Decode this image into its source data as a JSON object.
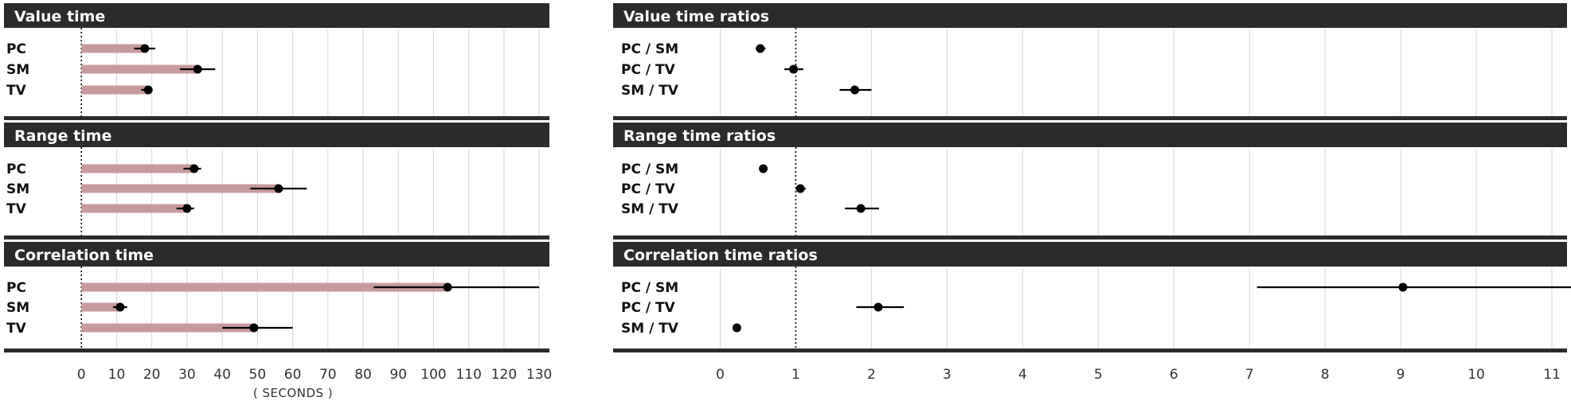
{
  "chart_data": [
    {
      "type": "bar",
      "title": "Value  time",
      "categories": [
        "PC",
        "SM",
        "TV"
      ],
      "values": [
        18,
        33,
        19
      ],
      "ci": [
        [
          15,
          21
        ],
        [
          28,
          38
        ],
        [
          17,
          20
        ]
      ],
      "xlim": [
        -10,
        132
      ],
      "xticks": [
        0,
        10,
        20,
        30,
        40,
        50,
        60,
        70,
        80,
        90,
        100,
        110,
        120,
        130
      ],
      "xlabel": "( SECONDS )",
      "reference_line": 0
    },
    {
      "type": "bar",
      "title": "Range time",
      "categories": [
        "PC",
        "SM",
        "TV"
      ],
      "values": [
        32,
        56,
        30
      ],
      "ci": [
        [
          29,
          34
        ],
        [
          48,
          64
        ],
        [
          27,
          32
        ]
      ],
      "xlim": [
        -10,
        132
      ],
      "xticks": [
        0,
        10,
        20,
        30,
        40,
        50,
        60,
        70,
        80,
        90,
        100,
        110,
        120,
        130
      ],
      "xlabel": "( SECONDS )",
      "reference_line": 0
    },
    {
      "type": "bar",
      "title": "Correlation time",
      "categories": [
        "PC",
        "SM",
        "TV"
      ],
      "values": [
        104,
        11,
        49
      ],
      "ci": [
        [
          83,
          130
        ],
        [
          9,
          13
        ],
        [
          40,
          60
        ]
      ],
      "xlim": [
        -10,
        132
      ],
      "xticks": [
        0,
        10,
        20,
        30,
        40,
        50,
        60,
        70,
        80,
        90,
        100,
        110,
        120,
        130
      ],
      "xlabel": "( SECONDS )",
      "reference_line": 0
    },
    {
      "type": "scatter",
      "title": "Value time ratios",
      "categories": [
        "PC / SM",
        "PC / TV",
        "SM / TV"
      ],
      "values": [
        0.53,
        0.97,
        1.78
      ],
      "ci": [
        [
          0.47,
          0.6
        ],
        [
          0.85,
          1.1
        ],
        [
          1.58,
          2.0
        ]
      ],
      "xlim": [
        -0.5,
        11.2
      ],
      "xticks": [
        0,
        1,
        2,
        3,
        4,
        5,
        6,
        7,
        8,
        9,
        10,
        11
      ],
      "reference_line": 1
    },
    {
      "type": "scatter",
      "title": "Range time  ratios",
      "categories": [
        "PC / SM",
        "PC / TV",
        "SM / TV"
      ],
      "values": [
        0.57,
        1.06,
        1.86
      ],
      "ci": [
        [
          0.54,
          0.6
        ],
        [
          1.0,
          1.13
        ],
        [
          1.65,
          2.1
        ]
      ],
      "xlim": [
        -0.5,
        11.2
      ],
      "xticks": [
        0,
        1,
        2,
        3,
        4,
        5,
        6,
        7,
        8,
        9,
        10,
        11
      ],
      "reference_line": 1
    },
    {
      "type": "scatter",
      "title": "Correlation time ratios",
      "categories": [
        "PC / SM",
        "PC / TV",
        "SM / TV"
      ],
      "values": [
        9.03,
        2.09,
        0.22
      ],
      "ci": [
        [
          7.1,
          11.3
        ],
        [
          1.8,
          2.43
        ],
        [
          0.2,
          0.25
        ]
      ],
      "xlim": [
        -0.5,
        11.2
      ],
      "xticks": [
        0,
        1,
        2,
        3,
        4,
        5,
        6,
        7,
        8,
        9,
        10,
        11
      ],
      "reference_line": 1
    }
  ],
  "colors": {
    "header_bg": "#2b2b2b",
    "header_text": "#ffffff",
    "bar_fill": "#c89a9e",
    "point": "#000000",
    "error_bar": "#000000",
    "grid": "#d6d6d6",
    "separator": "#2b2b2b",
    "tick_text": "#333333"
  }
}
